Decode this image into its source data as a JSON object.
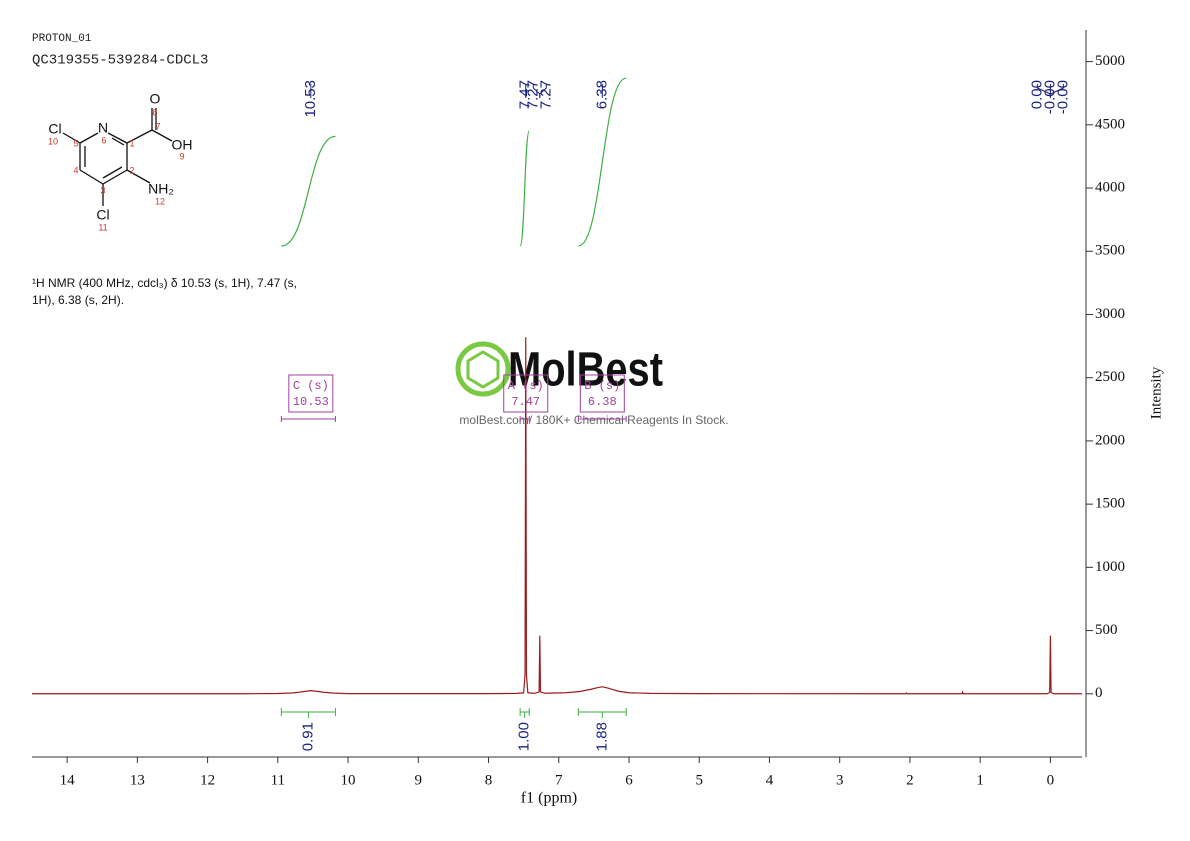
{
  "header": {
    "experiment": "PROTON_01",
    "sample": "QC319355-539284-CDCL3"
  },
  "structure": {
    "atom_labels": [
      {
        "text": "Cl",
        "number": 10
      },
      {
        "text": "N",
        "number": 6
      },
      {
        "text": "O",
        "number": 8
      },
      {
        "text": "OH",
        "number": 9
      },
      {
        "text": "NH₂",
        "number": 12
      },
      {
        "text": "Cl",
        "number": 11
      }
    ],
    "carbon_numbers": [
      1,
      2,
      3,
      4,
      5,
      7
    ]
  },
  "description": [
    "¹H NMR (400 MHz, cdcl₃) δ 10.53 (s, 1H), 7.47 (s,",
    "1H), 6.38 (s, 2H)."
  ],
  "watermark": {
    "brand": "MolBest",
    "tagline": "molBest.com/ 180K+ Chemical Reagents In Stock."
  },
  "chart_data": {
    "type": "line",
    "x_label": "f1 (ppm)",
    "y_label": "Intensity",
    "color": "#9b1c1c",
    "xlim": [
      14.5,
      -0.45
    ],
    "xticks": [
      14,
      13,
      12,
      11,
      10,
      9,
      8,
      7,
      6,
      5,
      4,
      3,
      2,
      1,
      0
    ],
    "ylim": [
      -500,
      5250
    ],
    "yticks": [
      0,
      500,
      1000,
      1500,
      2000,
      2500,
      3000,
      3500,
      4000,
      4500,
      5000
    ],
    "x": [
      14.5,
      11.5,
      11.0,
      10.8,
      10.7,
      10.6,
      10.53,
      10.45,
      10.35,
      10.2,
      10.0,
      8.0,
      7.6,
      7.5,
      7.48,
      7.47,
      7.46,
      7.44,
      7.35,
      7.28,
      7.27,
      7.26,
      7.2,
      6.9,
      6.7,
      6.55,
      6.45,
      6.38,
      6.3,
      6.15,
      6.0,
      5.7,
      5.0,
      2.06,
      2.05,
      2.04,
      1.26,
      1.25,
      1.24,
      0.05,
      0.01,
      0,
      -0.01,
      -0.05,
      -0.45
    ],
    "values": [
      0,
      0,
      2,
      6,
      12,
      20,
      25,
      20,
      12,
      5,
      1,
      1,
      3,
      8,
      150,
      2820,
      150,
      8,
      3,
      15,
      460,
      15,
      4,
      8,
      18,
      35,
      48,
      55,
      45,
      20,
      8,
      3,
      1,
      0,
      6,
      0,
      0,
      14,
      0,
      0,
      10,
      460,
      10,
      0,
      0
    ],
    "peak_picks": {
      "values": [
        10.53,
        7.47,
        7.27,
        7.27,
        6.38,
        0,
        0,
        0
      ],
      "value_labels": [
        "10.53",
        "7.47",
        "7.27",
        "7.27",
        "6.38",
        "0.00",
        "-0.00",
        "-0.00"
      ]
    },
    "integrals": [
      {
        "from": 10.95,
        "to": 10.18,
        "value": 0.91
      },
      {
        "from": 7.55,
        "to": 7.42,
        "value": 1.0,
        "value_label": "1.00"
      },
      {
        "from": 6.72,
        "to": 6.04,
        "value": 1.88
      }
    ],
    "multiplets": [
      {
        "label": "C (s)",
        "shift": 10.53,
        "from": 10.95,
        "to": 10.18
      },
      {
        "label": "A (s)",
        "shift": 7.47,
        "from": 7.55,
        "to": 7.42
      },
      {
        "label": "B (s)",
        "shift": 6.38,
        "from": 6.72,
        "to": 6.04
      }
    ]
  }
}
